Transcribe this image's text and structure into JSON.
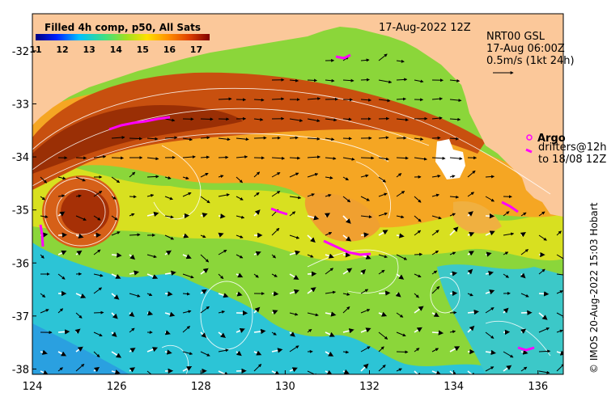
{
  "map": {
    "colorbar": {
      "title": "Filled 4h comp, p50, All Sats",
      "tick_labels": [
        "11",
        "12",
        "13",
        "14",
        "15",
        "16",
        "17"
      ],
      "range": [
        11,
        17.5
      ]
    },
    "date_label": "17-Aug-2022 12Z",
    "current_info": {
      "line1": "NRT00 GSL",
      "line2": "17-Aug 06:00Z",
      "line3": "0.5m/s (1kt 24h)"
    },
    "legend": {
      "argo_label": "Argo",
      "drifters_line1": "drifters@12h",
      "drifters_line2": "to 18/08 12Z"
    },
    "credit": "© IMOS 20-Aug-2022 15:03 Hobart",
    "x_axis": {
      "ticks": [
        "124",
        "126",
        "128",
        "130",
        "132",
        "134",
        "136"
      ],
      "range": [
        124,
        136.6
      ]
    },
    "y_axis": {
      "ticks": [
        "-32",
        "-33",
        "-34",
        "-35",
        "-36",
        "-37",
        "-38"
      ],
      "range": [
        -38.1,
        -31.3
      ]
    },
    "colors": {
      "land": "#fbc89a",
      "warm": "#b8400a",
      "mid": "#f5a623",
      "cool": "#7fd23a",
      "cold": "#27b5d8",
      "argo": "#ff00ff"
    }
  }
}
